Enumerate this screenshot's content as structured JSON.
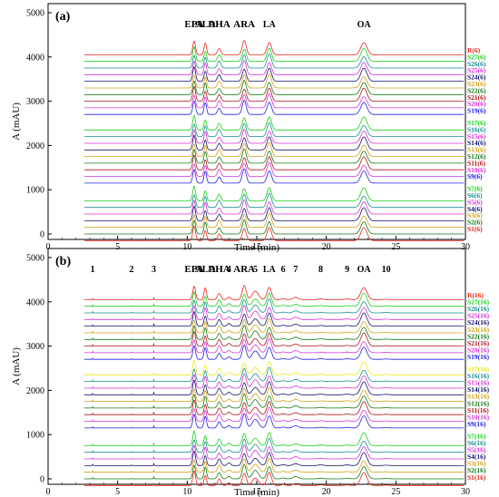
{
  "chart_data": [
    {
      "type": "line",
      "panel_label": "(a)",
      "xlabel": "Time (min)",
      "ylabel": "A (mAU)",
      "xlim": [
        0,
        30
      ],
      "ylim": [
        0,
        5000
      ],
      "x_ticks": [
        "0",
        "5",
        "10",
        "15",
        "20",
        "25",
        "30"
      ],
      "y_ticks": [
        "0",
        "1000",
        "2000",
        "3000",
        "4000",
        "5000"
      ],
      "peaks": [
        {
          "label": "EPA",
          "time": 10.5
        },
        {
          "label": "ALA",
          "time": 11.3
        },
        {
          "label": "DHA",
          "time": 12.3
        },
        {
          "label": "ARA",
          "time": 14.1
        },
        {
          "label": "LA",
          "time": 15.9
        },
        {
          "label": "OA",
          "time": 22.7
        }
      ],
      "series": [
        {
          "name": "R(6)",
          "color": "#e8261f",
          "baseline": 4050
        },
        {
          "name": "S27(6)",
          "color": "#18d018",
          "baseline": 3900
        },
        {
          "name": "S26(6)",
          "color": "#1a8f8f",
          "baseline": 3750
        },
        {
          "name": "S25(6)",
          "color": "#d633d6",
          "baseline": 3600
        },
        {
          "name": "S24(6)",
          "color": "#16166e",
          "baseline": 3450
        },
        {
          "name": "S23(6)",
          "color": "#d4a017",
          "baseline": 3300
        },
        {
          "name": "S22(6)",
          "color": "#157a15",
          "baseline": 3150
        },
        {
          "name": "S21(6)",
          "color": "#b0151b",
          "baseline": 3000
        },
        {
          "name": "S20(6)",
          "color": "#d633d6",
          "baseline": 2850
        },
        {
          "name": "S19(6)",
          "color": "#2222e8",
          "baseline": 2700
        },
        {
          "name": "S17(6)",
          "color": "#18d018",
          "baseline": 2350
        },
        {
          "name": "S16(6)",
          "color": "#1a8f8f",
          "baseline": 2200
        },
        {
          "name": "S15(6)",
          "color": "#d633d6",
          "baseline": 2050
        },
        {
          "name": "S14(6)",
          "color": "#16166e",
          "baseline": 1900
        },
        {
          "name": "S13(6)",
          "color": "#d4a017",
          "baseline": 1750
        },
        {
          "name": "S12(6)",
          "color": "#157a15",
          "baseline": 1600
        },
        {
          "name": "S11(6)",
          "color": "#b0151b",
          "baseline": 1450
        },
        {
          "name": "S10(6)",
          "color": "#d633d6",
          "baseline": 1300
        },
        {
          "name": "S9(6)",
          "color": "#2222e8",
          "baseline": 1150
        },
        {
          "name": "S7(6)",
          "color": "#18d018",
          "baseline": 750
        },
        {
          "name": "S6(6)",
          "color": "#1a8f8f",
          "baseline": 600
        },
        {
          "name": "S5(6)",
          "color": "#d633d6",
          "baseline": 450
        },
        {
          "name": "S4(6)",
          "color": "#16166e",
          "baseline": 300
        },
        {
          "name": "S3(6)",
          "color": "#d4a017",
          "baseline": 150
        },
        {
          "name": "S2(6)",
          "color": "#157a15",
          "baseline": 0
        },
        {
          "name": "S1(6)",
          "color": "#e8261f",
          "baseline": -150
        }
      ]
    },
    {
      "type": "line",
      "panel_label": "(b)",
      "xlabel": "Time (min)",
      "ylabel": "A (mAU)",
      "xlim": [
        0,
        30
      ],
      "ylim": [
        0,
        5000
      ],
      "x_ticks": [
        "0",
        "5",
        "10",
        "15",
        "20",
        "25",
        "30"
      ],
      "y_ticks": [
        "0",
        "1000",
        "2000",
        "3000",
        "4000",
        "5000"
      ],
      "peaks": [
        {
          "label": "1",
          "time": 3.2
        },
        {
          "label": "2",
          "time": 6.0
        },
        {
          "label": "3",
          "time": 7.6
        },
        {
          "label": "EPA",
          "time": 10.5
        },
        {
          "label": "ALA",
          "time": 11.3
        },
        {
          "label": "DHA",
          "time": 12.3
        },
        {
          "label": "4",
          "time": 13.0
        },
        {
          "label": "ARA",
          "time": 14.1
        },
        {
          "label": "5",
          "time": 14.9
        },
        {
          "label": "LA",
          "time": 15.9
        },
        {
          "label": "6",
          "time": 16.9
        },
        {
          "label": "7",
          "time": 17.8
        },
        {
          "label": "8",
          "time": 19.6
        },
        {
          "label": "9",
          "time": 21.5
        },
        {
          "label": "OA",
          "time": 22.7
        },
        {
          "label": "10",
          "time": 24.3
        }
      ],
      "series": [
        {
          "name": "R(16)",
          "color": "#e8261f",
          "baseline": 4050
        },
        {
          "name": "S27(16)",
          "color": "#18d018",
          "baseline": 3900
        },
        {
          "name": "S26(16)",
          "color": "#1a8f8f",
          "baseline": 3750
        },
        {
          "name": "S25(16)",
          "color": "#d633d6",
          "baseline": 3600
        },
        {
          "name": "S24(16)",
          "color": "#16166e",
          "baseline": 3450
        },
        {
          "name": "S23(16)",
          "color": "#d4a017",
          "baseline": 3300
        },
        {
          "name": "S22(16)",
          "color": "#157a15",
          "baseline": 3150
        },
        {
          "name": "S21(16)",
          "color": "#b0151b",
          "baseline": 3000
        },
        {
          "name": "S20(16)",
          "color": "#d633d6",
          "baseline": 2850
        },
        {
          "name": "S19(16)",
          "color": "#2222e8",
          "baseline": 2700
        },
        {
          "name": "S17(16)",
          "color": "#e8e818",
          "baseline": 2350
        },
        {
          "name": "S16(16)",
          "color": "#1a8f8f",
          "baseline": 2200
        },
        {
          "name": "S15(16)",
          "color": "#d633d6",
          "baseline": 2050
        },
        {
          "name": "S14(16)",
          "color": "#16166e",
          "baseline": 1900
        },
        {
          "name": "S13(16)",
          "color": "#d4a017",
          "baseline": 1750
        },
        {
          "name": "S12(16)",
          "color": "#157a15",
          "baseline": 1600
        },
        {
          "name": "S11(16)",
          "color": "#b0151b",
          "baseline": 1450
        },
        {
          "name": "S10(16)",
          "color": "#d633d6",
          "baseline": 1300
        },
        {
          "name": "S9(16)",
          "color": "#2222e8",
          "baseline": 1150
        },
        {
          "name": "S7(16)",
          "color": "#18d018",
          "baseline": 750
        },
        {
          "name": "S6(16)",
          "color": "#1a8f8f",
          "baseline": 600
        },
        {
          "name": "S5(16)",
          "color": "#d633d6",
          "baseline": 450
        },
        {
          "name": "S4(16)",
          "color": "#16166e",
          "baseline": 300
        },
        {
          "name": "S3(16)",
          "color": "#d4a017",
          "baseline": 150
        },
        {
          "name": "S2(16)",
          "color": "#157a15",
          "baseline": 0
        },
        {
          "name": "S1(16)",
          "color": "#e8261f",
          "baseline": -150
        }
      ]
    }
  ]
}
